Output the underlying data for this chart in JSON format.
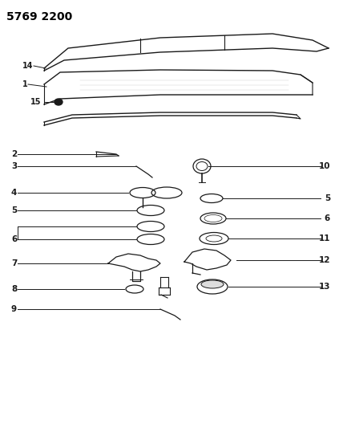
{
  "title": "5769 2200",
  "bg_color": "#ffffff",
  "title_fontsize": 10,
  "title_color": "#000000",
  "line_color": "#1a1a1a",
  "fig_w": 4.28,
  "fig_h": 5.33,
  "dpi": 100
}
